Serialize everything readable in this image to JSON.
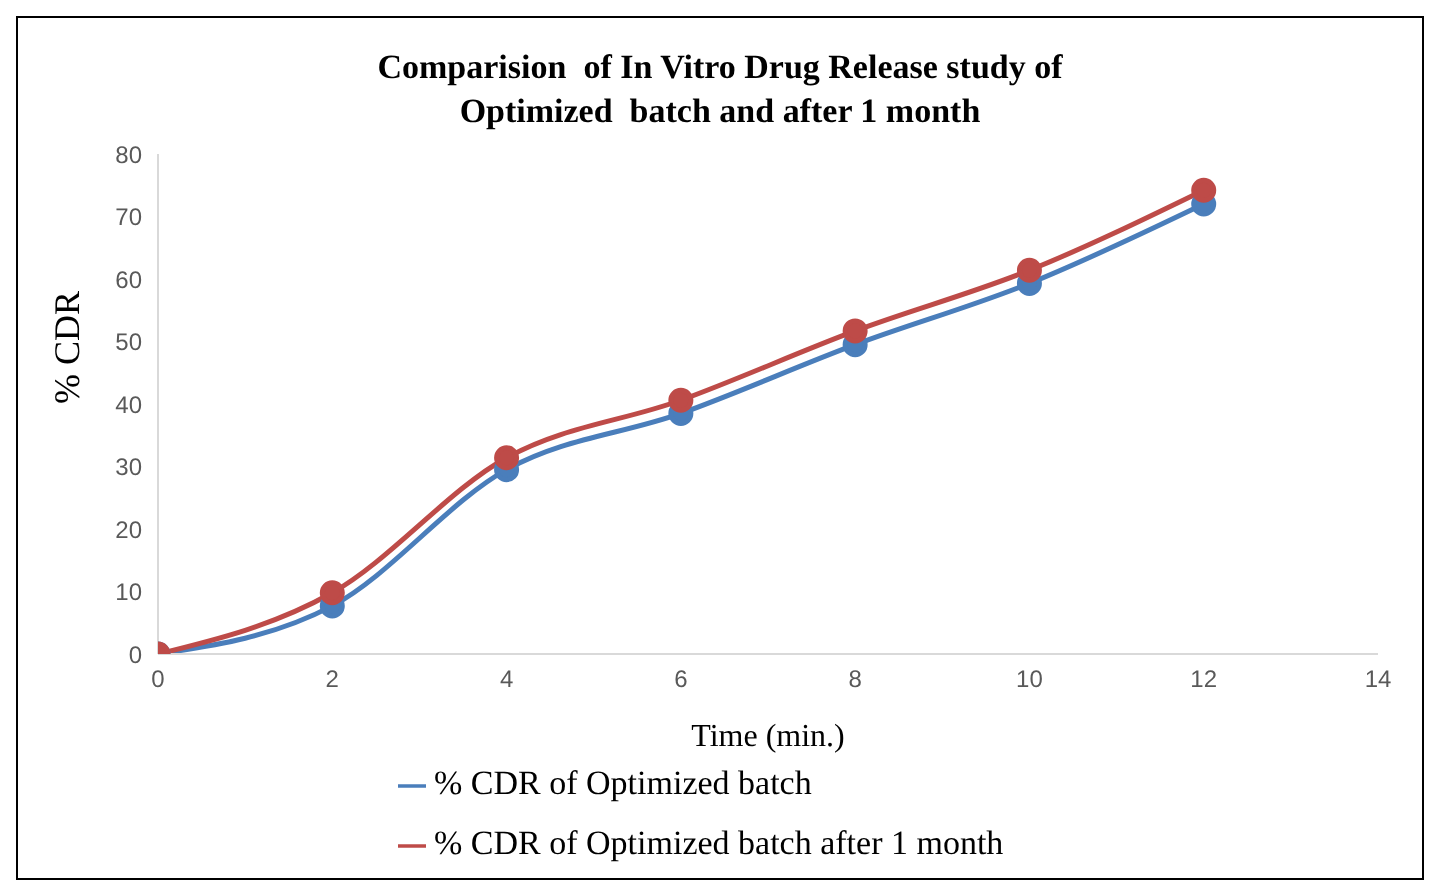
{
  "chart_data": {
    "type": "line",
    "title": "Comparision  of In Vitro Drug Release study of Optimized  batch and after 1 month",
    "xlabel": "Time  (min.)",
    "ylabel": "% CDR",
    "x": [
      0,
      2,
      4,
      6,
      8,
      10,
      12
    ],
    "series": [
      {
        "name": "% CDR of Optimized batch",
        "color": "#4a7ebb",
        "values": [
          0,
          7.7,
          29.5,
          38.5,
          49.5,
          59.3,
          72
        ]
      },
      {
        "name": "% CDR of Optimized batch after 1 month",
        "color": "#be4b48",
        "values": [
          0,
          9.8,
          31.4,
          40.6,
          51.7,
          61.4,
          74.2
        ]
      }
    ],
    "xlim": [
      0,
      14
    ],
    "xticks": [
      0,
      2,
      4,
      6,
      8,
      10,
      12,
      14
    ],
    "ylim": [
      0,
      80
    ],
    "yticks": [
      0,
      10,
      20,
      30,
      40,
      50,
      60,
      70,
      80
    ],
    "grid": false,
    "legend": "bottom",
    "marker": "circle",
    "line_style": "solid"
  }
}
